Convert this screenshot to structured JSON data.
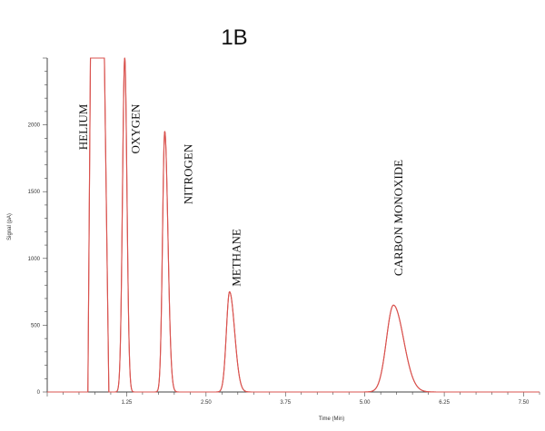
{
  "chart_data": {
    "type": "line",
    "title": "1B",
    "xlabel": "Time (Min)",
    "ylabel": "Signal (pA)",
    "xlim": [
      0,
      7.75
    ],
    "ylim": [
      0,
      2500
    ],
    "x_ticks": [
      1.25,
      2.5,
      3.75,
      5.0,
      6.25,
      7.5
    ],
    "x_tick_labels": [
      "1.25",
      "2.50",
      "3.75",
      "5.00",
      "6.25",
      "7.50"
    ],
    "y_ticks": [
      0,
      500,
      1000,
      1500,
      2000
    ],
    "y_tick_labels": [
      "0",
      "500",
      "1000",
      "1500",
      "2000"
    ],
    "grid": false,
    "colors": {
      "trace": "#d9534f",
      "axis": "#444444",
      "text": "#111111"
    },
    "peaks": [
      {
        "name": "HELIUM",
        "time": 0.88,
        "height": 2500,
        "start": 0.64,
        "end": 0.97,
        "flat_top": true,
        "rise": 0.04,
        "tail": 0.07
      },
      {
        "name": "OXYGEN",
        "time": 1.22,
        "height": 2500,
        "start": 1.17,
        "end": 1.35,
        "flat_top": false,
        "rise": 0.035,
        "tail": 0.035
      },
      {
        "name": "NITROGEN",
        "time": 1.85,
        "height": 1950,
        "start": 1.75,
        "end": 2.0,
        "flat_top": false,
        "rise": 0.035,
        "tail": 0.05
      },
      {
        "name": "METHANE",
        "time": 2.87,
        "height": 750,
        "start": 2.7,
        "end": 3.05,
        "flat_top": false,
        "rise": 0.05,
        "tail": 0.08
      },
      {
        "name": "CARBON MONOXIDE",
        "time": 5.45,
        "height": 650,
        "start": 5.1,
        "end": 5.85,
        "flat_top": false,
        "rise": 0.11,
        "tail": 0.16
      }
    ]
  }
}
